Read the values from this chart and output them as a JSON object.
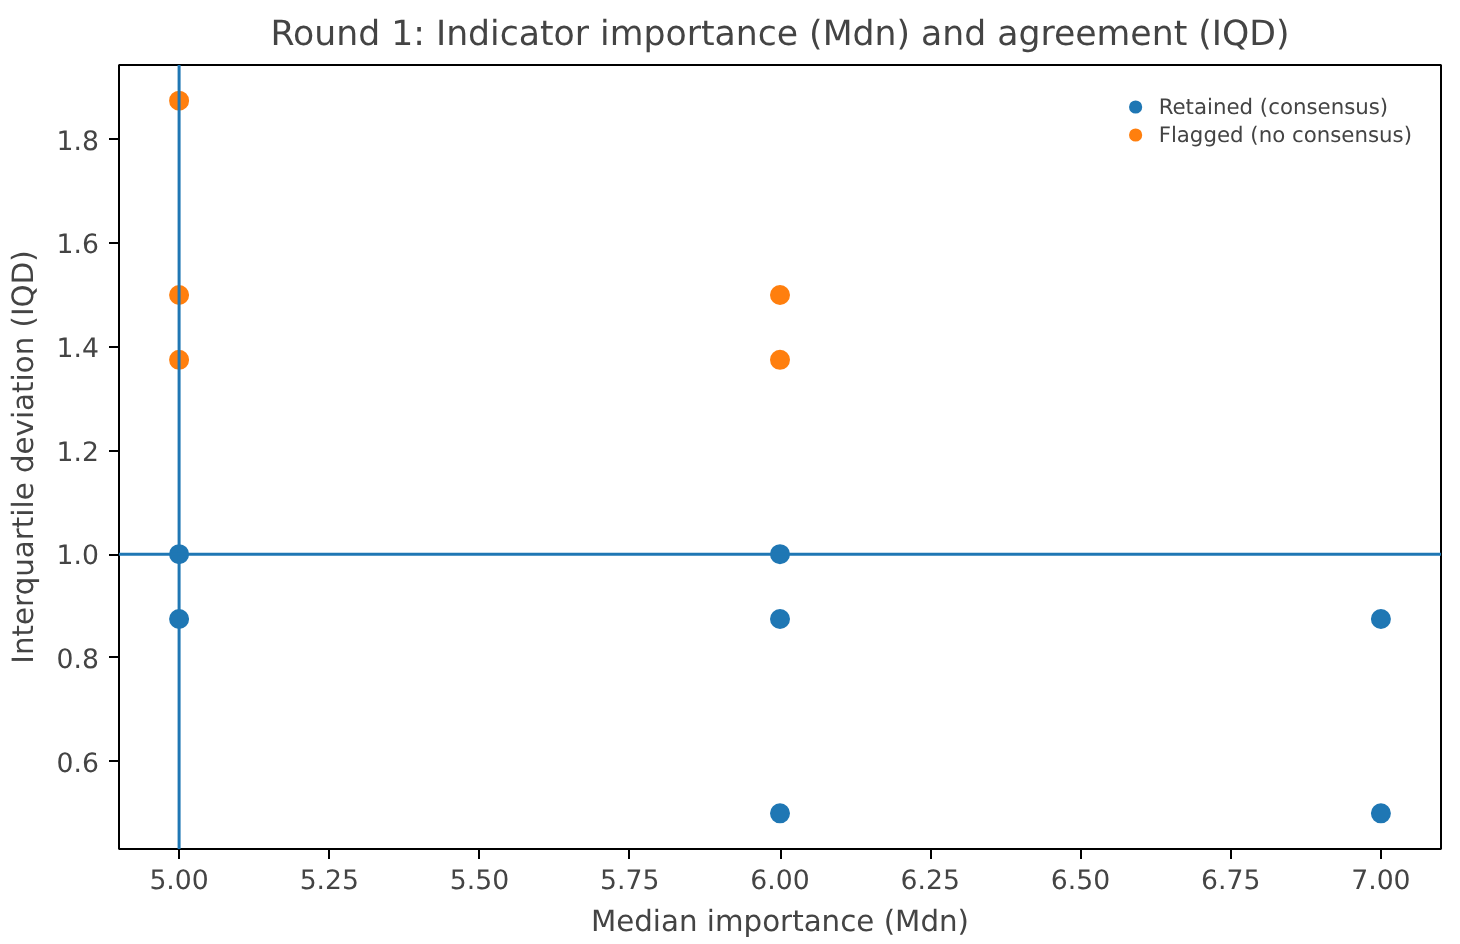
{
  "chart_data": {
    "type": "scatter",
    "title": "Round 1: Indicator importance (Mdn) and agreement (IQD)",
    "xlabel": "Median importance (Mdn)",
    "ylabel": "Interquartile deviation (IQD)",
    "series": [
      {
        "name": "Retained (consensus)",
        "color": "#1f77b4",
        "x": [
          5,
          5,
          6,
          6,
          6,
          7,
          7
        ],
        "values": [
          1.0,
          0.875,
          1.0,
          0.875,
          0.5,
          0.875,
          0.5
        ]
      },
      {
        "name": "Flagged (no consensus)",
        "color": "#ff7f0e",
        "x": [
          5,
          5,
          5,
          6,
          6
        ],
        "values": [
          1.875,
          1.5,
          1.375,
          1.5,
          1.375
        ]
      }
    ],
    "xlim": [
      4.9,
      7.1
    ],
    "ylim": [
      0.43125,
      1.94375
    ],
    "xticks": [
      {
        "value": 5,
        "label": "5.00"
      },
      {
        "value": 5.25,
        "label": "5.25"
      },
      {
        "value": 5.5,
        "label": "5.50"
      },
      {
        "value": 5.75,
        "label": "5.75"
      },
      {
        "value": 6,
        "label": "6.00"
      },
      {
        "value": 6.25,
        "label": "6.25"
      },
      {
        "value": 6.5,
        "label": "6.50"
      },
      {
        "value": 6.75,
        "label": "6.75"
      },
      {
        "value": 7,
        "label": "7.00"
      }
    ],
    "yticks": [
      {
        "value": 0.6,
        "label": "0.6"
      },
      {
        "value": 0.8,
        "label": "0.8"
      },
      {
        "value": 1.0,
        "label": "1.0"
      },
      {
        "value": 1.2,
        "label": "1.2"
      },
      {
        "value": 1.4,
        "label": "1.4"
      },
      {
        "value": 1.6,
        "label": "1.6"
      },
      {
        "value": 1.8,
        "label": "1.8"
      }
    ],
    "ref_lines": [
      {
        "axis": "x",
        "value": 5,
        "color": "#1f77b4"
      },
      {
        "axis": "y",
        "value": 1.0,
        "color": "#1f77b4"
      }
    ],
    "grid": false,
    "legend": "top right",
    "marker": "circle"
  }
}
